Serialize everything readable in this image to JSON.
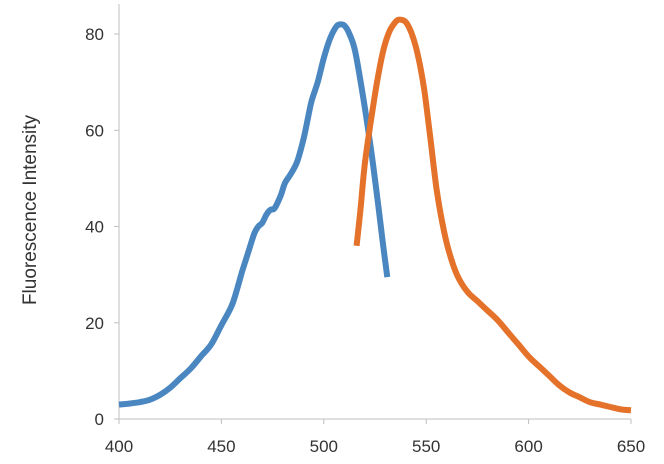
{
  "chart_data": {
    "type": "line",
    "title": "",
    "xlabel": "",
    "ylabel": "Fluorescence Intensity",
    "xlim": [
      400,
      650
    ],
    "ylim": [
      0,
      85
    ],
    "xticks": [
      400,
      450,
      500,
      550,
      600,
      650
    ],
    "yticks": [
      0,
      20,
      40,
      60,
      80
    ],
    "grid": false,
    "legend": "none",
    "series": [
      {
        "color": "#4a86c0",
        "points": [
          [
            400,
            3.0
          ],
          [
            405,
            3.2
          ],
          [
            410,
            3.5
          ],
          [
            415,
            4.0
          ],
          [
            420,
            5.0
          ],
          [
            425,
            6.5
          ],
          [
            430,
            8.5
          ],
          [
            435,
            10.5
          ],
          [
            440,
            13.0
          ],
          [
            445,
            15.5
          ],
          [
            450,
            19.5
          ],
          [
            455,
            23.5
          ],
          [
            458,
            27.5
          ],
          [
            460,
            30.5
          ],
          [
            463,
            34.5
          ],
          [
            466,
            38.5
          ],
          [
            468,
            40.0
          ],
          [
            470,
            40.8
          ],
          [
            472,
            42.5
          ],
          [
            474,
            43.5
          ],
          [
            476,
            43.8
          ],
          [
            479,
            46.5
          ],
          [
            481,
            49.0
          ],
          [
            484,
            51.0
          ],
          [
            487,
            53.5
          ],
          [
            490,
            58.0
          ],
          [
            492,
            62.0
          ],
          [
            494,
            66.0
          ],
          [
            497,
            70.0
          ],
          [
            500,
            75.0
          ],
          [
            503,
            79.0
          ],
          [
            506,
            81.5
          ],
          [
            508,
            82.0
          ],
          [
            510,
            81.8
          ],
          [
            512,
            80.5
          ],
          [
            515,
            77.0
          ],
          [
            518,
            70.0
          ],
          [
            521,
            62.0
          ],
          [
            524,
            53.0
          ],
          [
            527,
            43.0
          ],
          [
            529,
            36.0
          ],
          [
            531,
            29.5
          ]
        ]
      },
      {
        "color": "#e4722a",
        "points": [
          [
            516,
            36.0
          ],
          [
            518,
            44.0
          ],
          [
            520,
            53.0
          ],
          [
            523,
            62.0
          ],
          [
            526,
            70.0
          ],
          [
            529,
            76.5
          ],
          [
            532,
            80.5
          ],
          [
            535,
            82.5
          ],
          [
            537,
            83.0
          ],
          [
            540,
            82.5
          ],
          [
            543,
            80.0
          ],
          [
            546,
            75.5
          ],
          [
            549,
            68.5
          ],
          [
            552,
            58.5
          ],
          [
            555,
            48.0
          ],
          [
            558,
            40.5
          ],
          [
            561,
            35.0
          ],
          [
            565,
            30.0
          ],
          [
            570,
            26.5
          ],
          [
            575,
            24.5
          ],
          [
            580,
            22.5
          ],
          [
            585,
            20.5
          ],
          [
            590,
            18.0
          ],
          [
            595,
            15.5
          ],
          [
            600,
            13.0
          ],
          [
            605,
            11.0
          ],
          [
            610,
            9.0
          ],
          [
            615,
            7.0
          ],
          [
            620,
            5.5
          ],
          [
            625,
            4.5
          ],
          [
            630,
            3.5
          ],
          [
            635,
            3.0
          ],
          [
            640,
            2.5
          ],
          [
            645,
            2.0
          ],
          [
            650,
            1.8
          ]
        ]
      }
    ]
  }
}
